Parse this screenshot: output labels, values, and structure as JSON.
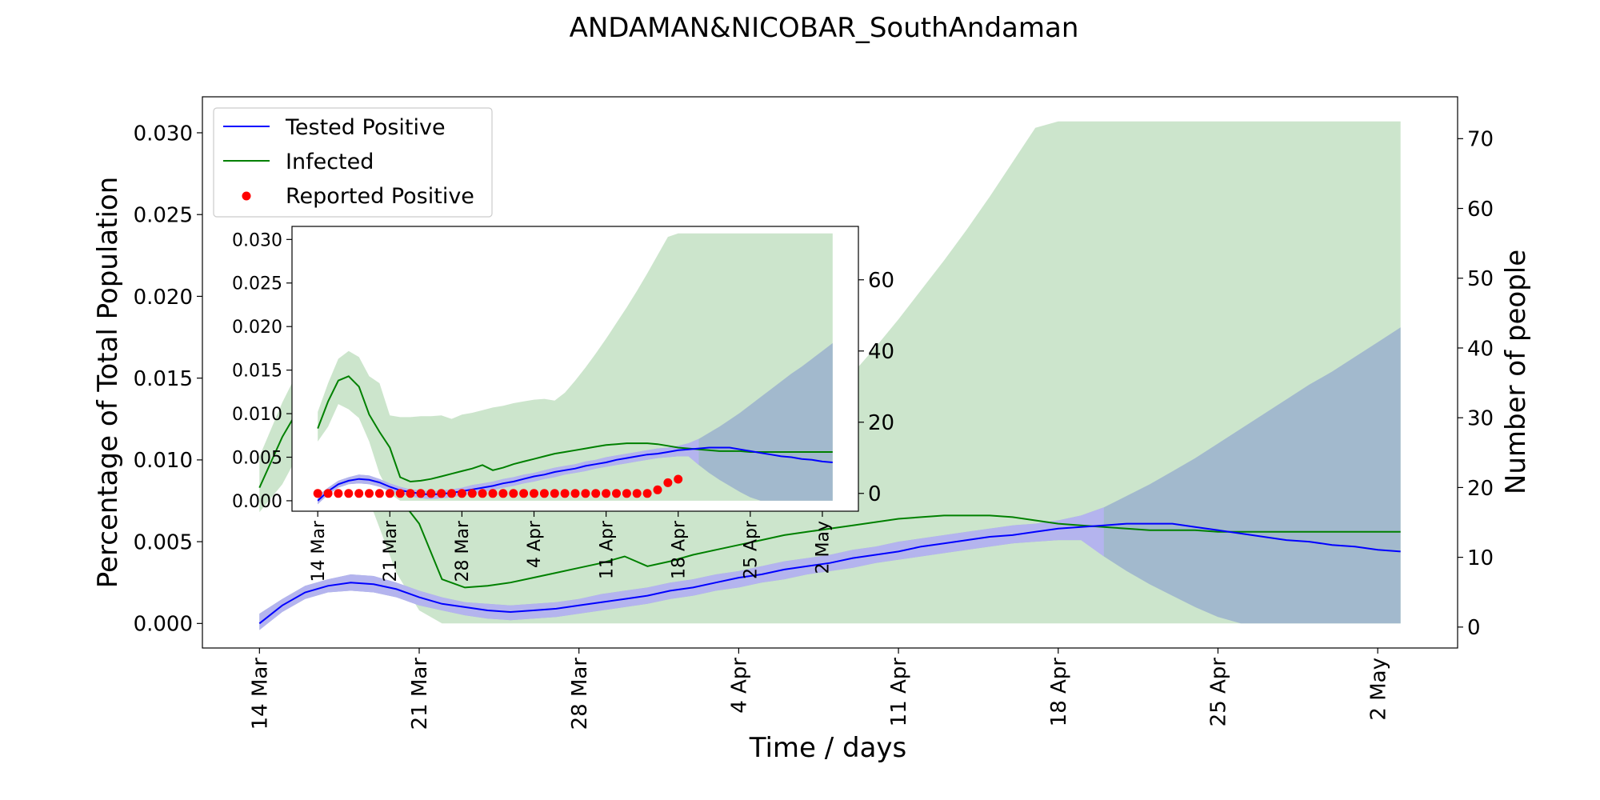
{
  "chart_data": {
    "type": "line",
    "title": "ANDAMAN&NICOBAR_SouthAndaman",
    "xlabel": "Time / days",
    "ylabel": "Percentage of Total Population",
    "ylabel_right": "Number of people",
    "x_start": "14 Mar",
    "x_end_day": 50,
    "x_tick_days": [
      0,
      7,
      14,
      21,
      28,
      35,
      42,
      49
    ],
    "x_tick_labels": [
      "14 Mar",
      "21 Mar",
      "28 Mar",
      "4 Apr",
      "11 Apr",
      "18 Apr",
      "25 Apr",
      "2 May"
    ],
    "y_ticks": [
      "0.000",
      "0.005",
      "0.010",
      "0.015",
      "0.020",
      "0.025",
      "0.030"
    ],
    "y_tick_values": [
      0,
      0.005,
      0.01,
      0.015,
      0.02,
      0.025,
      0.03
    ],
    "y_right_ticks": [
      "0",
      "10",
      "20",
      "30",
      "40",
      "50",
      "60",
      "70"
    ],
    "y_right_tick_values": [
      0,
      10,
      20,
      30,
      40,
      50,
      60,
      70
    ],
    "inset_y_right_ticks": [
      "0",
      "20",
      "40",
      "60"
    ],
    "inset_y_right_tick_values": [
      0,
      20,
      40,
      60
    ],
    "ylim": [
      -0.0015,
      0.0322
    ],
    "ylim_right": [
      -3.0,
      76.0
    ],
    "legend": {
      "placement": "upper-left",
      "entries": [
        "Tested Positive",
        "Infected",
        "Reported Positive"
      ]
    },
    "colors": {
      "tested": "#0000ff",
      "tested_band": "#b4b4ee",
      "infected": "#008000",
      "infected_band": "#cce5cc",
      "overlap_band": "#a2b9cd",
      "reported": "#ff0000"
    },
    "series": [
      {
        "name": "Tested Positive",
        "x": [
          0,
          1,
          2,
          3,
          4,
          5,
          6,
          7,
          8,
          9,
          10,
          11,
          12,
          13,
          14,
          15,
          16,
          17,
          18,
          19,
          20,
          21,
          22,
          23,
          24,
          25,
          26,
          27,
          28,
          29,
          30,
          31,
          32,
          33,
          34,
          35,
          36,
          37,
          38,
          39,
          40,
          41,
          42,
          43,
          44,
          45,
          46,
          47,
          48,
          49,
          50
        ],
        "y": [
          0.0,
          0.0011,
          0.0019,
          0.0023,
          0.0025,
          0.0024,
          0.0021,
          0.0016,
          0.0012,
          0.001,
          0.0008,
          0.0007,
          0.0008,
          0.0009,
          0.0011,
          0.0013,
          0.0015,
          0.0017,
          0.002,
          0.0022,
          0.0025,
          0.0028,
          0.003,
          0.0033,
          0.0035,
          0.0037,
          0.004,
          0.0042,
          0.0044,
          0.0047,
          0.0049,
          0.0051,
          0.0053,
          0.0054,
          0.0056,
          0.0058,
          0.0059,
          0.006,
          0.0061,
          0.0061,
          0.0061,
          0.0059,
          0.0057,
          0.0055,
          0.0053,
          0.0051,
          0.005,
          0.0048,
          0.0047,
          0.0045,
          0.0044
        ],
        "band_low": [
          -0.0004,
          0.0007,
          0.0015,
          0.0019,
          0.002,
          0.0019,
          0.0016,
          0.0011,
          0.0008,
          0.0005,
          0.0003,
          0.0002,
          0.0003,
          0.0004,
          0.0006,
          0.0008,
          0.001,
          0.0012,
          0.0015,
          0.0017,
          0.002,
          0.0022,
          0.0025,
          0.0027,
          0.003,
          0.0032,
          0.0034,
          0.0037,
          0.0039,
          0.0041,
          0.0043,
          0.0045,
          0.0047,
          0.0049,
          0.005,
          0.0051,
          0.0051,
          0.0041,
          0.0032,
          0.0024,
          0.0017,
          0.001,
          0.0004,
          0.0,
          0.0,
          0.0,
          0.0,
          0.0,
          0.0,
          0.0,
          0.0
        ],
        "band_high": [
          0.0006,
          0.0015,
          0.0023,
          0.0027,
          0.003,
          0.0029,
          0.0025,
          0.002,
          0.0016,
          0.0013,
          0.0012,
          0.0011,
          0.0012,
          0.0013,
          0.0015,
          0.0018,
          0.002,
          0.0022,
          0.0025,
          0.0027,
          0.003,
          0.0032,
          0.0035,
          0.0038,
          0.004,
          0.0042,
          0.0045,
          0.0047,
          0.005,
          0.0052,
          0.0054,
          0.0056,
          0.0058,
          0.006,
          0.0061,
          0.0063,
          0.0066,
          0.0071,
          0.0078,
          0.0085,
          0.0093,
          0.0101,
          0.011,
          0.0119,
          0.0128,
          0.0137,
          0.0146,
          0.0154,
          0.0163,
          0.0172,
          0.0181
        ]
      },
      {
        "name": "Infected",
        "x": [
          0,
          1,
          2,
          3,
          4,
          5,
          6,
          7,
          8,
          9,
          10,
          11,
          12,
          13,
          14,
          15,
          16,
          17,
          18,
          19,
          20,
          21,
          22,
          23,
          24,
          25,
          26,
          27,
          28,
          29,
          30,
          31,
          32,
          33,
          34,
          35,
          36,
          37,
          38,
          39,
          40,
          41,
          42,
          43,
          44,
          45,
          46,
          47,
          48,
          49,
          50
        ],
        "y": [
          0.0083,
          0.0114,
          0.0138,
          0.0143,
          0.0131,
          0.0099,
          0.0079,
          0.0061,
          0.0027,
          0.0022,
          0.0023,
          0.0025,
          0.0028,
          0.0031,
          0.0034,
          0.0037,
          0.0041,
          0.0035,
          0.0038,
          0.0042,
          0.0045,
          0.0048,
          0.0051,
          0.0054,
          0.0056,
          0.0058,
          0.006,
          0.0062,
          0.0064,
          0.0065,
          0.0066,
          0.0066,
          0.0066,
          0.0065,
          0.0063,
          0.0061,
          0.006,
          0.0059,
          0.0058,
          0.0057,
          0.0057,
          0.0057,
          0.0056,
          0.0056,
          0.0056,
          0.0056,
          0.0056,
          0.0056,
          0.0056,
          0.0056,
          0.0056
        ],
        "band_low": [
          0.0068,
          0.0085,
          0.0111,
          0.0105,
          0.0095,
          0.0068,
          0.0031,
          0.0008,
          0.0,
          0.0,
          0.0,
          0.0,
          0.0,
          0.0,
          0.0,
          0.0,
          0.0,
          0.0,
          0.0,
          0.0,
          0.0,
          0.0,
          0.0,
          0.0,
          0.0,
          0.0,
          0.0,
          0.0,
          0.0,
          0.0,
          0.0,
          0.0,
          0.0,
          0.0,
          0.0,
          0.0,
          0.0,
          0.0,
          0.0,
          0.0,
          0.0,
          0.0,
          0.0,
          0.0,
          0.0,
          0.0,
          0.0,
          0.0,
          0.0,
          0.0,
          0.0
        ],
        "band_high": [
          0.0102,
          0.0135,
          0.0163,
          0.0172,
          0.0165,
          0.0143,
          0.0135,
          0.0098,
          0.0096,
          0.0096,
          0.0097,
          0.0097,
          0.0098,
          0.0094,
          0.0099,
          0.0101,
          0.0104,
          0.0107,
          0.0109,
          0.0112,
          0.0114,
          0.0116,
          0.0117,
          0.0115,
          0.0124,
          0.0138,
          0.0153,
          0.0169,
          0.0186,
          0.0204,
          0.0222,
          0.0241,
          0.0261,
          0.0282,
          0.0303,
          0.0307,
          0.0307,
          0.0307,
          0.0307,
          0.0307,
          0.0307,
          0.0307,
          0.0307,
          0.0307,
          0.0307,
          0.0307,
          0.0307,
          0.0307,
          0.0307,
          0.0307,
          0.0307
        ]
      },
      {
        "name": "Reported Positive",
        "x": [
          0,
          1,
          2,
          3,
          4,
          5,
          6,
          7,
          8,
          9,
          10,
          11,
          12,
          13,
          14,
          15,
          16,
          17,
          18,
          19,
          20,
          21,
          22,
          23,
          24,
          25,
          26,
          27,
          28,
          29,
          30,
          31,
          32,
          33,
          34,
          35
        ],
        "y": [
          0,
          0,
          0,
          0,
          0,
          0,
          0,
          0,
          0,
          0,
          0,
          0,
          0,
          0,
          0,
          0,
          0,
          0,
          0,
          0,
          0,
          0,
          0,
          0,
          0,
          0,
          0,
          0,
          0,
          0,
          0,
          0,
          0,
          1,
          3,
          4
        ]
      }
    ]
  }
}
